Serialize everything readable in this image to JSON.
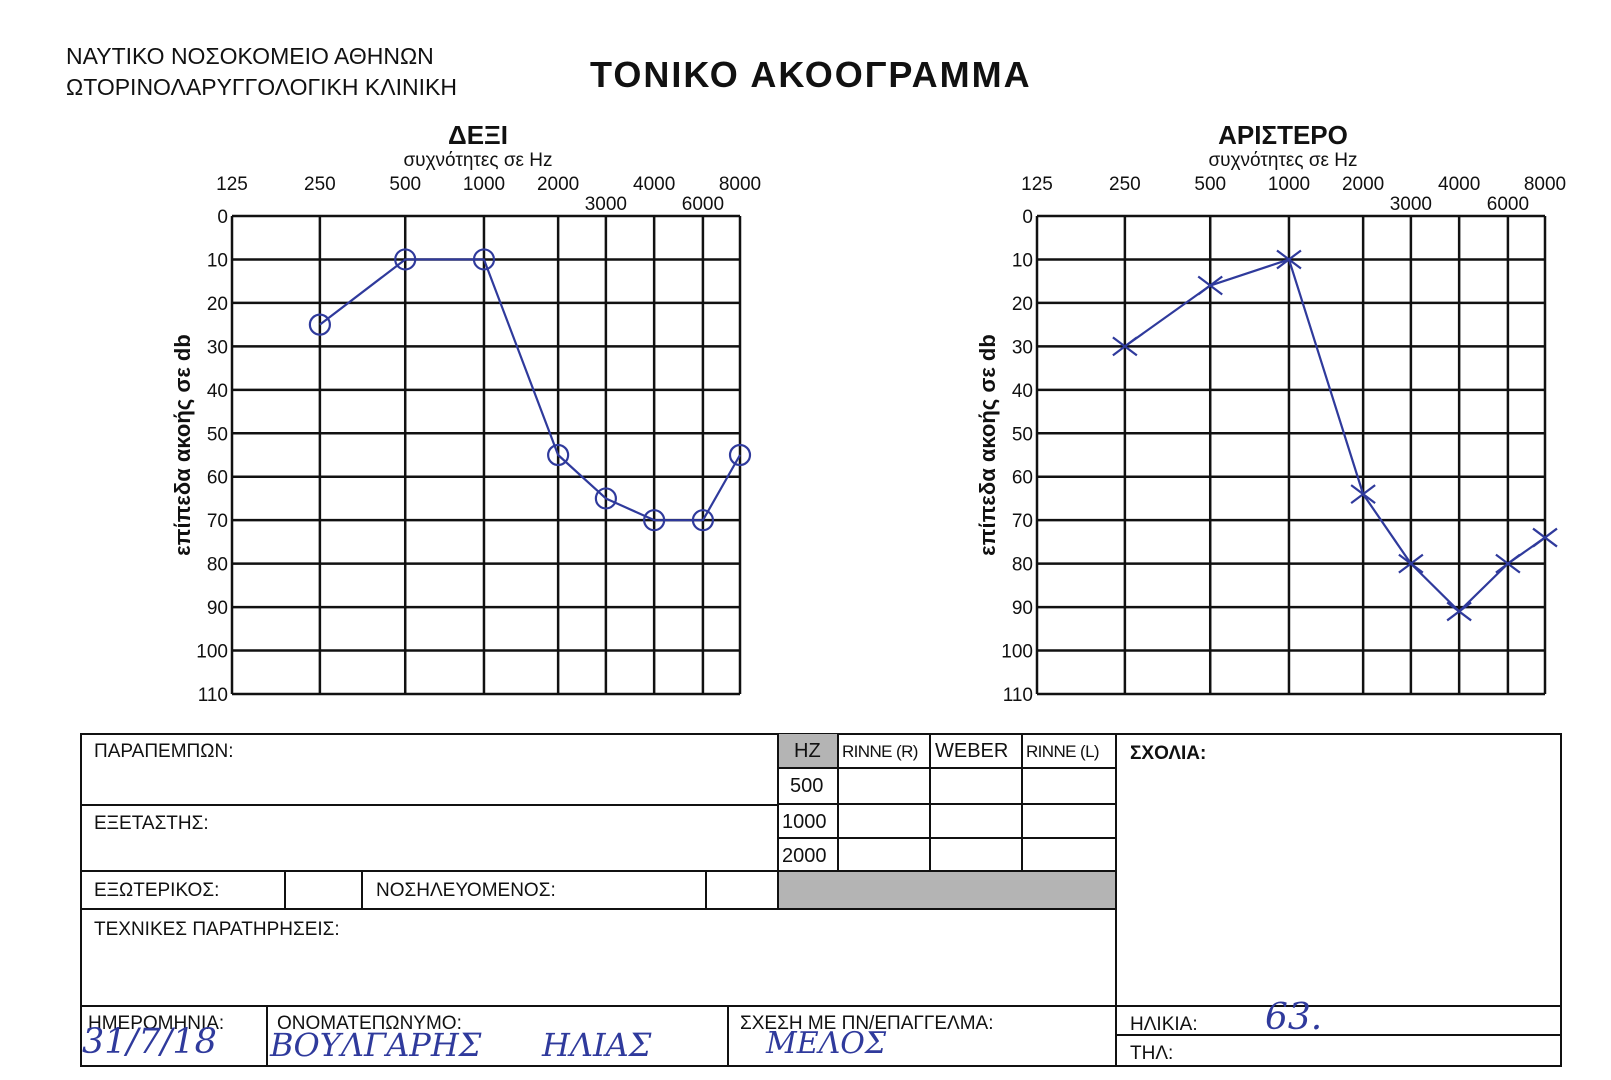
{
  "header": {
    "hospital": "ΝΑΥΤΙΚΟ ΝΟΣΟΚΟΜΕΙΟ ΑΘΗΝΩΝ",
    "clinic": "ΩΤΟΡΙΝΟΛΑΡΥΓΓΟΛΟΓΙΚΗ ΚΛΙΝΙΚΗ",
    "title": "ΤΟΝΙΚΟ ΑΚΟΟΓΡΑΜΜΑ"
  },
  "chart_data": [
    {
      "type": "line",
      "title": "ΔΕΞΙ",
      "subtitle": "συχνότητες σε Hz",
      "xlabel": "συχνότητες σε Hz",
      "ylabel": "επίπεδα ακοής σε db",
      "x_ticks_top": [
        "125",
        "250",
        "500",
        "1000",
        "2000",
        "4000",
        "8000"
      ],
      "x_ticks_mid": [
        "3000",
        "6000"
      ],
      "y_ticks": [
        "0",
        "10",
        "20",
        "30",
        "40",
        "50",
        "60",
        "70",
        "80",
        "90",
        "100",
        "110"
      ],
      "ylim": [
        0,
        110
      ],
      "y_inverted": true,
      "marker": "circle",
      "line_color": "#2f3a9c",
      "points": [
        {
          "x": "250",
          "y": 25
        },
        {
          "x": "500",
          "y": 10
        },
        {
          "x": "1000",
          "y": 10
        },
        {
          "x": "2000",
          "y": 55
        },
        {
          "x": "3000",
          "y": 65
        },
        {
          "x": "4000",
          "y": 70
        },
        {
          "x": "6000",
          "y": 70
        },
        {
          "x": "8000",
          "y": 55
        }
      ]
    },
    {
      "type": "line",
      "title": "ΑΡΙΣΤΕΡΟ",
      "subtitle": "συχνότητες σε Hz",
      "xlabel": "συχνότητες σε Hz",
      "ylabel": "επίπεδα ακοής σε db",
      "x_ticks_top": [
        "125",
        "250",
        "500",
        "1000",
        "2000",
        "4000",
        "8000"
      ],
      "x_ticks_mid": [
        "3000",
        "6000"
      ],
      "y_ticks": [
        "0",
        "10",
        "20",
        "30",
        "40",
        "50",
        "60",
        "70",
        "80",
        "90",
        "100",
        "110"
      ],
      "ylim": [
        0,
        110
      ],
      "y_inverted": true,
      "marker": "cross",
      "line_color": "#2f3a9c",
      "points": [
        {
          "x": "250",
          "y": 30
        },
        {
          "x": "500",
          "y": 16
        },
        {
          "x": "1000",
          "y": 10
        },
        {
          "x": "2000",
          "y": 64
        },
        {
          "x": "3000",
          "y": 80
        },
        {
          "x": "4000",
          "y": 91
        },
        {
          "x": "6000",
          "y": 80
        },
        {
          "x": "8000",
          "y": 74
        }
      ]
    }
  ],
  "form": {
    "referrer_label": "ΠΑΡΑΠΕΜΠΩΝ:",
    "examiner_label": "ΕΞΕΤΑΣΤΗΣ:",
    "outpatient_label": "ΕΞΩΤΕΡΙΚΟΣ:",
    "inpatient_label": "ΝΟΣΗΛΕΥΟΜΕΝΟΣ:",
    "technical_label": "ΤΕΧΝΙΚΕΣ ΠΑΡΑΤΗΡΗΣΕΙΣ:",
    "comments_label": "ΣΧΟΛΙΑ:",
    "date_label": "ΗΜΕΡΟΜΗΝΙΑ:",
    "name_label": "ΟΝΟΜΑΤΕΠΩΝΥΜΟ:",
    "relation_label": "ΣΧΕΣΗ ΜΕ ΠΝ/ΕΠΑΓΓΕΛΜΑ:",
    "age_label": "ΗΛΙΚΙΑ:",
    "phone_label": "ΤΗΛ:",
    "tuning_table": {
      "headers": [
        "HZ",
        "RINNE (R)",
        "WEBER",
        "RINNE (L)"
      ],
      "rows": [
        "500",
        "1000",
        "2000"
      ]
    },
    "handwritten": {
      "date": "31/7/18",
      "name": "ΒΟΥΛΓΑΡΗΣ",
      "first_name": "ΗΛΙΑΣ",
      "relation": "ΜΕΛΟΣ",
      "age": "63."
    }
  }
}
